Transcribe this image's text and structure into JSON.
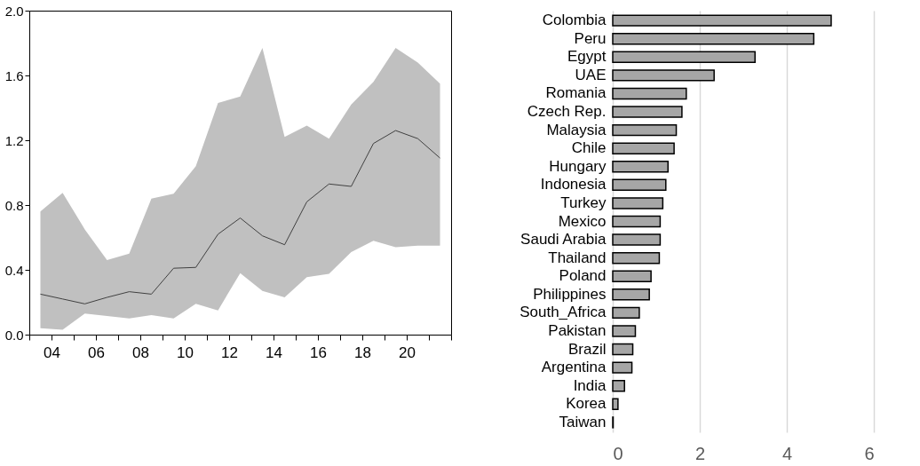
{
  "chart_data": [
    {
      "type": "line",
      "x": [
        2003.5,
        2004.5,
        2005.5,
        2006.5,
        2007.5,
        2008.5,
        2009.5,
        2010.5,
        2011.5,
        2012.5,
        2013.5,
        2014.5,
        2015.5,
        2016.5,
        2017.5,
        2018.5,
        2019.5,
        2020.5,
        2021.5
      ],
      "series": [
        {
          "color": "#404040",
          "values": [
            0.25,
            0.22,
            0.19,
            0.23,
            0.265,
            0.25,
            0.41,
            0.415,
            0.62,
            0.72,
            0.61,
            0.555,
            0.82,
            0.93,
            0.915,
            1.18,
            1.26,
            1.21,
            1.09
          ],
          "lower": [
            0.04,
            0.03,
            0.13,
            0.115,
            0.1,
            0.12,
            0.1,
            0.19,
            0.15,
            0.38,
            0.27,
            0.23,
            0.355,
            0.375,
            0.51,
            0.58,
            0.54,
            0.55,
            0.55
          ],
          "upper": [
            0.76,
            0.875,
            0.65,
            0.46,
            0.5,
            0.84,
            0.87,
            1.04,
            1.43,
            1.47,
            1.77,
            1.22,
            1.29,
            1.21,
            1.42,
            1.56,
            1.77,
            1.68,
            1.55
          ]
        }
      ],
      "xlim": [
        2003,
        2022
      ],
      "xticks": [
        {
          "value": 2003,
          "label": null
        },
        {
          "value": 2004,
          "label": "04"
        },
        {
          "value": 2005,
          "label": null
        },
        {
          "value": 2006,
          "label": "06"
        },
        {
          "value": 2007,
          "label": null
        },
        {
          "value": 2008,
          "label": "08"
        },
        {
          "value": 2009,
          "label": null
        },
        {
          "value": 2010,
          "label": "10"
        },
        {
          "value": 2011,
          "label": null
        },
        {
          "value": 2012,
          "label": "12"
        },
        {
          "value": 2013,
          "label": null
        },
        {
          "value": 2014,
          "label": "14"
        },
        {
          "value": 2015,
          "label": null
        },
        {
          "value": 2016,
          "label": "16"
        },
        {
          "value": 2017,
          "label": null
        },
        {
          "value": 2018,
          "label": "18"
        },
        {
          "value": 2019,
          "label": null
        },
        {
          "value": 2020,
          "label": "20"
        },
        {
          "value": 2021,
          "label": null
        },
        {
          "value": 2022,
          "label": null
        }
      ],
      "ylim": [
        0,
        2
      ],
      "yticks": [
        {
          "value": 0,
          "label": "0.0"
        },
        0.4,
        0.8,
        1.2,
        1.6,
        {
          "value": 2,
          "label": "2.0"
        }
      ],
      "grid": false,
      "legend": false,
      "line_style": "solid"
    },
    {
      "type": "bar",
      "orientation": "horizontal",
      "categories": [
        "Colombia",
        "Peru",
        "Egypt",
        "UAE",
        "Romania",
        "Czech Rep.",
        "Malaysia",
        "Chile",
        "Hungary",
        "Indonesia",
        "Turkey",
        "Mexico",
        "Saudi Arabia",
        "Thailand",
        "Poland",
        "Philippines",
        "South_Africa",
        "Pakistan",
        "Brazil",
        "Argentina",
        "India",
        "Korea",
        "Taiwan"
      ],
      "values": [
        5.02,
        4.62,
        3.27,
        2.33,
        1.69,
        1.59,
        1.46,
        1.41,
        1.27,
        1.22,
        1.15,
        1.09,
        1.09,
        1.07,
        0.88,
        0.84,
        0.61,
        0.52,
        0.46,
        0.44,
        0.27,
        0.12,
        0.01
      ],
      "color": "#a6a6a6",
      "xlim": [
        0,
        6
      ],
      "xticks": [
        0,
        2,
        4,
        6
      ],
      "grid": "x",
      "legend": false
    }
  ]
}
